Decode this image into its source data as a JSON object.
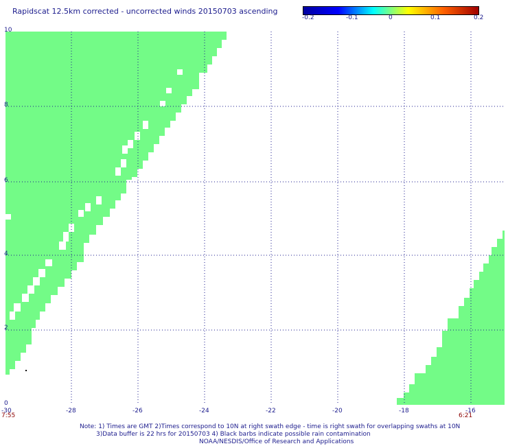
{
  "title": "Rapidscat 12.5km corrected - uncorrected winds 20150703 ascending",
  "colorbar": {
    "ticks": [
      "-0.2",
      "-0.1",
      "0",
      "0.1",
      "0.2"
    ],
    "colors": [
      "#0000a0",
      "#0000ff",
      "#00ffff",
      "#ffff00",
      "#ff6000",
      "#a00000"
    ]
  },
  "axes": {
    "y_ticks": [
      "0",
      "2",
      "4",
      "6",
      "8",
      "10"
    ],
    "x_ticks": [
      "-30",
      "-28",
      "-26",
      "-24",
      "-22",
      "-20",
      "-18",
      "-16"
    ]
  },
  "swath_color": "#73fb87",
  "times": {
    "left": "7:55",
    "right": "6:21"
  },
  "notes": {
    "line1": "Note: 1) Times are GMT 2)Times correspond to 10N at right swath edge - time is right swath for overlapping swaths at 10N",
    "line2": "3)Data buffer is 22 hrs for 20150703 4) Black barbs indicate possible rain contamination",
    "line3": "NOAA/NESDIS/Office of Research and Applications"
  }
}
